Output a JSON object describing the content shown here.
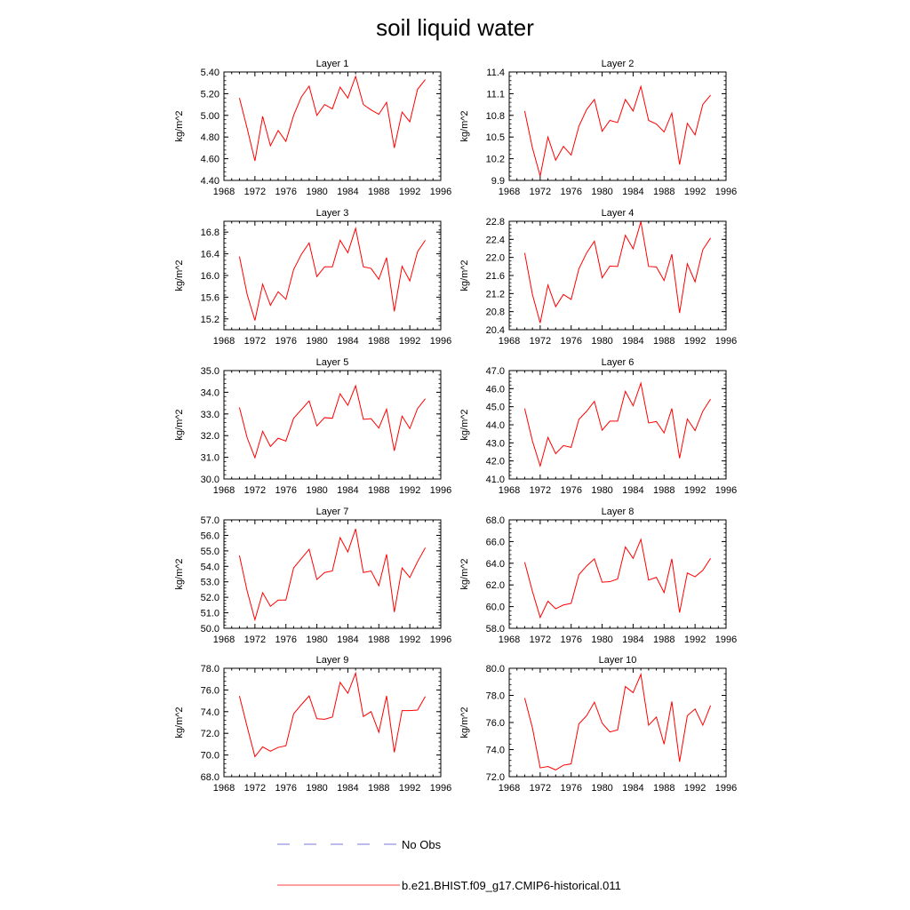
{
  "figure": {
    "title": "soil liquid water"
  },
  "legend": {
    "entries": [
      {
        "label": "No Obs",
        "color": "#4d4dcc",
        "style": "dashed"
      },
      {
        "label": "b.e21.BHIST.f09_g17.CMIP6-historical.011",
        "color": "#ff0000",
        "style": "solid"
      }
    ]
  },
  "chart_data": [
    {
      "type": "line",
      "title": "Layer 1",
      "ylabel": "kg/m^2",
      "xlim": [
        1968,
        1996
      ],
      "ylim": [
        4.4,
        5.4
      ],
      "xticks": [
        "1968",
        "1972",
        "1976",
        "1980",
        "1984",
        "1988",
        "1992",
        "1996"
      ],
      "yticks": [
        "4.40",
        "4.60",
        "4.80",
        "5.00",
        "5.20",
        "5.40"
      ],
      "series": [
        {
          "color": "#ff0000",
          "x": [
            1970,
            1971,
            1972,
            1973,
            1974,
            1975,
            1976,
            1977,
            1978,
            1979,
            1980,
            1981,
            1982,
            1983,
            1984,
            1985,
            1986,
            1987,
            1988,
            1989,
            1990,
            1991,
            1992,
            1993,
            1994
          ],
          "y": [
            5.16,
            4.88,
            4.58,
            4.99,
            4.72,
            4.86,
            4.76,
            5.0,
            5.17,
            5.27,
            5.0,
            5.1,
            5.06,
            5.26,
            5.16,
            5.36,
            5.1,
            5.05,
            5.01,
            5.12,
            4.7,
            5.03,
            4.94,
            5.24,
            5.33
          ]
        }
      ]
    },
    {
      "type": "line",
      "title": "Layer 2",
      "ylabel": "kg/m^2",
      "xlim": [
        1968,
        1996
      ],
      "ylim": [
        9.9,
        11.4
      ],
      "xticks": [
        "1968",
        "1972",
        "1976",
        "1980",
        "1984",
        "1988",
        "1992",
        "1996"
      ],
      "yticks": [
        "9.9",
        "10.2",
        "10.5",
        "10.8",
        "11.1",
        "11.4"
      ],
      "series": [
        {
          "color": "#ff0000",
          "x": [
            1970,
            1971,
            1972,
            1973,
            1974,
            1975,
            1976,
            1977,
            1978,
            1979,
            1980,
            1981,
            1982,
            1983,
            1984,
            1985,
            1986,
            1987,
            1988,
            1989,
            1990,
            1991,
            1992,
            1993,
            1994
          ],
          "y": [
            10.86,
            10.35,
            9.96,
            10.5,
            10.18,
            10.37,
            10.25,
            10.65,
            10.88,
            11.02,
            10.58,
            10.73,
            10.7,
            11.02,
            10.86,
            11.2,
            10.73,
            10.68,
            10.57,
            10.83,
            10.12,
            10.69,
            10.53,
            10.95,
            11.08
          ]
        }
      ]
    },
    {
      "type": "line",
      "title": "Layer 3",
      "ylabel": "kg/m^2",
      "xlim": [
        1968,
        1996
      ],
      "ylim": [
        15.0,
        17.0
      ],
      "xticks": [
        "1968",
        "1972",
        "1976",
        "1980",
        "1984",
        "1988",
        "1992",
        "1996"
      ],
      "yticks": [
        "15.2",
        "15.6",
        "16.0",
        "16.4",
        "16.8"
      ],
      "series": [
        {
          "color": "#ff0000",
          "x": [
            1970,
            1971,
            1972,
            1973,
            1974,
            1975,
            1976,
            1977,
            1978,
            1979,
            1980,
            1981,
            1982,
            1983,
            1984,
            1985,
            1986,
            1987,
            1988,
            1989,
            1990,
            1991,
            1992,
            1993,
            1994
          ],
          "y": [
            16.35,
            15.65,
            15.17,
            15.84,
            15.45,
            15.7,
            15.56,
            16.11,
            16.39,
            16.6,
            15.98,
            16.16,
            16.16,
            16.65,
            16.42,
            16.87,
            16.16,
            16.13,
            15.93,
            16.33,
            15.34,
            16.17,
            15.9,
            16.44,
            16.65
          ]
        }
      ]
    },
    {
      "type": "line",
      "title": "Layer 4",
      "ylabel": "kg/m^2",
      "xlim": [
        1968,
        1996
      ],
      "ylim": [
        20.4,
        22.8
      ],
      "xticks": [
        "1968",
        "1972",
        "1976",
        "1980",
        "1984",
        "1988",
        "1992",
        "1996"
      ],
      "yticks": [
        "20.4",
        "20.8",
        "21.2",
        "21.6",
        "22.0",
        "22.4",
        "22.8"
      ],
      "series": [
        {
          "color": "#ff0000",
          "x": [
            1970,
            1971,
            1972,
            1973,
            1974,
            1975,
            1976,
            1977,
            1978,
            1979,
            1980,
            1981,
            1982,
            1983,
            1984,
            1985,
            1986,
            1987,
            1988,
            1989,
            1990,
            1991,
            1992,
            1993,
            1994
          ],
          "y": [
            22.1,
            21.18,
            20.55,
            21.39,
            20.91,
            21.18,
            21.07,
            21.75,
            22.1,
            22.36,
            21.55,
            21.81,
            21.8,
            22.49,
            22.19,
            22.79,
            21.8,
            21.79,
            21.49,
            22.07,
            20.77,
            21.86,
            21.46,
            22.17,
            22.43
          ]
        }
      ]
    },
    {
      "type": "line",
      "title": "Layer 5",
      "ylabel": "kg/m^2",
      "xlim": [
        1968,
        1996
      ],
      "ylim": [
        30.0,
        35.0
      ],
      "xticks": [
        "1968",
        "1972",
        "1976",
        "1980",
        "1984",
        "1988",
        "1992",
        "1996"
      ],
      "yticks": [
        "30.0",
        "31.0",
        "32.0",
        "33.0",
        "34.0",
        "35.0"
      ],
      "series": [
        {
          "color": "#ff0000",
          "x": [
            1970,
            1971,
            1972,
            1973,
            1974,
            1975,
            1976,
            1977,
            1978,
            1979,
            1980,
            1981,
            1982,
            1983,
            1984,
            1985,
            1986,
            1987,
            1988,
            1989,
            1990,
            1991,
            1992,
            1993,
            1994
          ],
          "y": [
            33.3,
            31.9,
            30.98,
            32.2,
            31.5,
            31.88,
            31.75,
            32.8,
            33.2,
            33.6,
            32.45,
            32.83,
            32.8,
            33.93,
            33.4,
            34.3,
            32.75,
            32.78,
            32.35,
            33.22,
            31.3,
            32.9,
            32.33,
            33.25,
            33.7
          ]
        }
      ]
    },
    {
      "type": "line",
      "title": "Layer 6",
      "ylabel": "kg/m^2",
      "xlim": [
        1968,
        1996
      ],
      "ylim": [
        41.0,
        47.0
      ],
      "xticks": [
        "1968",
        "1972",
        "1976",
        "1980",
        "1984",
        "1988",
        "1992",
        "1996"
      ],
      "yticks": [
        "41.0",
        "42.0",
        "43.0",
        "44.0",
        "45.0",
        "46.0",
        "47.0"
      ],
      "series": [
        {
          "color": "#ff0000",
          "x": [
            1970,
            1971,
            1972,
            1973,
            1974,
            1975,
            1976,
            1977,
            1978,
            1979,
            1980,
            1981,
            1982,
            1983,
            1984,
            1985,
            1986,
            1987,
            1988,
            1989,
            1990,
            1991,
            1992,
            1993,
            1994
          ],
          "y": [
            44.9,
            43.1,
            41.72,
            43.3,
            42.4,
            42.85,
            42.75,
            44.3,
            44.75,
            45.3,
            43.7,
            44.2,
            44.2,
            45.85,
            45.05,
            46.3,
            44.1,
            44.18,
            43.55,
            44.9,
            42.15,
            44.32,
            43.68,
            44.75,
            45.42
          ]
        }
      ]
    },
    {
      "type": "line",
      "title": "Layer 7",
      "ylabel": "kg/m^2",
      "xlim": [
        1968,
        1996
      ],
      "ylim": [
        50.0,
        57.0
      ],
      "xticks": [
        "1968",
        "1972",
        "1976",
        "1980",
        "1984",
        "1988",
        "1992",
        "1996"
      ],
      "yticks": [
        "50.0",
        "51.0",
        "52.0",
        "53.0",
        "54.0",
        "55.0",
        "56.0",
        "57.0"
      ],
      "series": [
        {
          "color": "#ff0000",
          "x": [
            1970,
            1971,
            1972,
            1973,
            1974,
            1975,
            1976,
            1977,
            1978,
            1979,
            1980,
            1981,
            1982,
            1983,
            1984,
            1985,
            1986,
            1987,
            1988,
            1989,
            1990,
            1991,
            1992,
            1993,
            1994
          ],
          "y": [
            54.7,
            52.4,
            50.55,
            52.3,
            51.42,
            51.82,
            51.82,
            53.9,
            54.5,
            55.1,
            53.15,
            53.6,
            53.7,
            55.85,
            54.93,
            56.42,
            53.6,
            53.7,
            52.75,
            54.78,
            51.05,
            53.9,
            53.28,
            54.3,
            55.2
          ]
        }
      ]
    },
    {
      "type": "line",
      "title": "Layer 8",
      "ylabel": "kg/m^2",
      "xlim": [
        1968,
        1996
      ],
      "ylim": [
        58.0,
        68.0
      ],
      "xticks": [
        "1968",
        "1972",
        "1976",
        "1980",
        "1984",
        "1988",
        "1992",
        "1996"
      ],
      "yticks": [
        "58.0",
        "60.0",
        "62.0",
        "64.0",
        "66.0",
        "68.0"
      ],
      "series": [
        {
          "color": "#ff0000",
          "x": [
            1970,
            1971,
            1972,
            1973,
            1974,
            1975,
            1976,
            1977,
            1978,
            1979,
            1980,
            1981,
            1982,
            1983,
            1984,
            1985,
            1986,
            1987,
            1988,
            1989,
            1990,
            1991,
            1992,
            1993,
            1994
          ],
          "y": [
            64.1,
            61.4,
            59.0,
            60.5,
            59.8,
            60.15,
            60.3,
            62.95,
            63.75,
            64.4,
            62.25,
            62.3,
            62.55,
            65.5,
            64.45,
            66.2,
            62.45,
            62.7,
            61.3,
            64.4,
            59.45,
            63.1,
            62.75,
            63.35,
            64.45
          ]
        }
      ]
    },
    {
      "type": "line",
      "title": "Layer 9",
      "ylabel": "kg/m^2",
      "xlim": [
        1968,
        1996
      ],
      "ylim": [
        68.0,
        78.0
      ],
      "xticks": [
        "1968",
        "1972",
        "1976",
        "1980",
        "1984",
        "1988",
        "1992",
        "1996"
      ],
      "yticks": [
        "68.0",
        "70.0",
        "72.0",
        "74.0",
        "76.0",
        "78.0"
      ],
      "series": [
        {
          "color": "#ff0000",
          "x": [
            1970,
            1971,
            1972,
            1973,
            1974,
            1975,
            1976,
            1977,
            1978,
            1979,
            1980,
            1981,
            1982,
            1983,
            1984,
            1985,
            1986,
            1987,
            1988,
            1989,
            1990,
            1991,
            1992,
            1993,
            1994
          ],
          "y": [
            75.45,
            72.6,
            69.85,
            70.75,
            70.35,
            70.7,
            70.85,
            73.8,
            74.65,
            75.45,
            73.35,
            73.3,
            73.5,
            76.7,
            75.7,
            77.55,
            73.55,
            74.0,
            72.1,
            75.45,
            70.25,
            74.1,
            74.1,
            74.15,
            75.4
          ]
        }
      ]
    },
    {
      "type": "line",
      "title": "Layer 10",
      "ylabel": "kg/m^2",
      "xlim": [
        1968,
        1996
      ],
      "ylim": [
        72.0,
        80.0
      ],
      "xticks": [
        "1968",
        "1972",
        "1976",
        "1980",
        "1984",
        "1988",
        "1992",
        "1996"
      ],
      "yticks": [
        "72.0",
        "74.0",
        "76.0",
        "78.0",
        "80.0"
      ],
      "series": [
        {
          "color": "#ff0000",
          "x": [
            1970,
            1971,
            1972,
            1973,
            1974,
            1975,
            1976,
            1977,
            1978,
            1979,
            1980,
            1981,
            1982,
            1983,
            1984,
            1985,
            1986,
            1987,
            1988,
            1989,
            1990,
            1991,
            1992,
            1993,
            1994
          ],
          "y": [
            77.8,
            75.6,
            72.65,
            72.75,
            72.5,
            72.85,
            72.95,
            75.9,
            76.5,
            77.5,
            75.95,
            75.3,
            75.45,
            78.65,
            78.2,
            79.55,
            75.8,
            76.4,
            74.4,
            77.55,
            73.1,
            76.5,
            77.0,
            75.8,
            77.25
          ]
        }
      ]
    }
  ]
}
